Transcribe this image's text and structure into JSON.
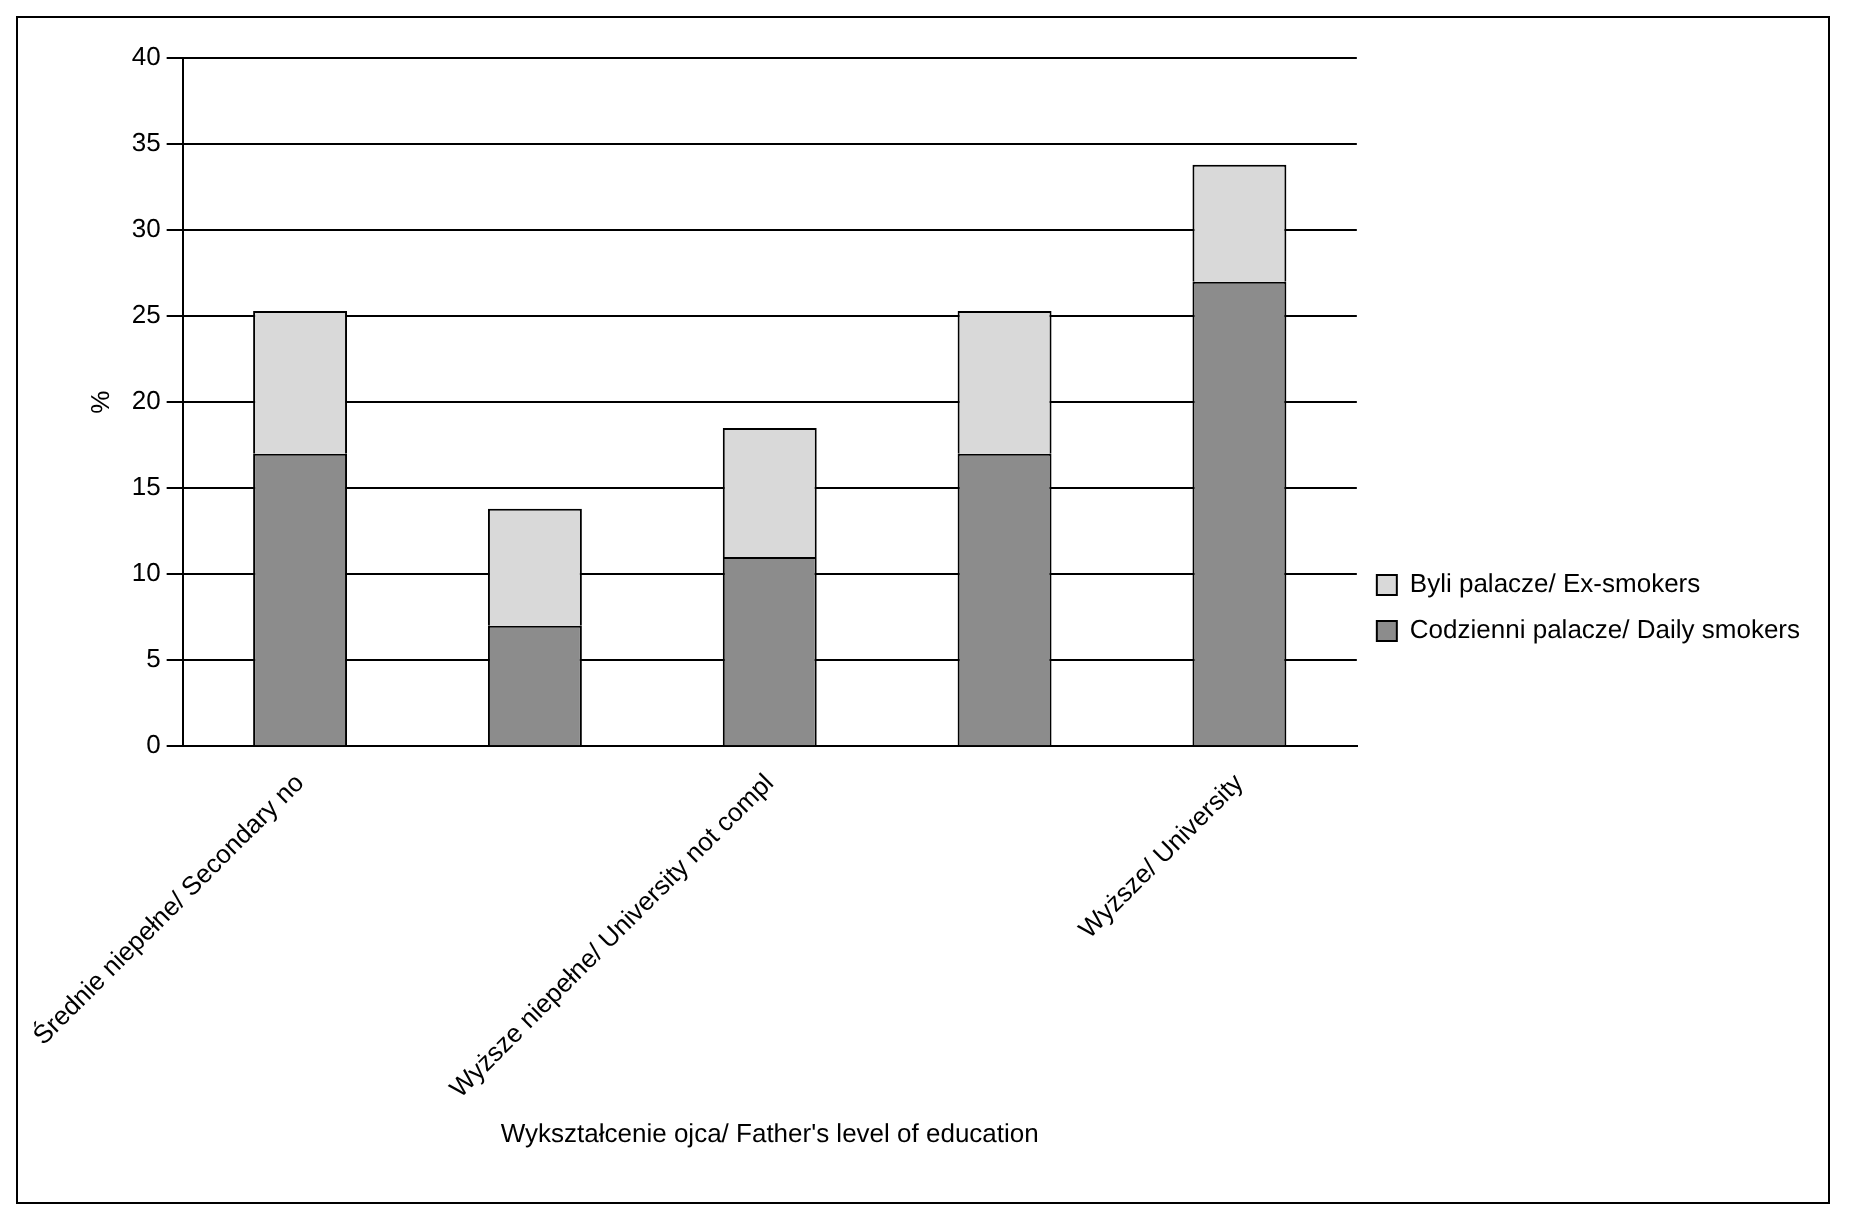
{
  "chart_data": {
    "type": "bar",
    "stacked": true,
    "categories": [
      "Średnie niepełne/ Secondary no",
      null,
      "Wyższe niepełne/ University not compl",
      null,
      "Wyższe/ University"
    ],
    "series": [
      {
        "name": "Codzienni palacze/ Daily smokers",
        "color": "#8c8c8c",
        "values": [
          17,
          7,
          11,
          17,
          27
        ]
      },
      {
        "name": "Byli palacze/ Ex-smokers",
        "color": "#d9d9d9",
        "values": [
          8.3,
          6.8,
          7.5,
          8.3,
          6.8
        ]
      }
    ],
    "ylim": [
      0,
      40
    ],
    "yticks": [
      0,
      5,
      10,
      15,
      20,
      25,
      30,
      35,
      40
    ],
    "grid": "y",
    "legend": "right",
    "xlabel": "Wykształcenie ojca/ Father's level of education",
    "ylabel": "%"
  }
}
